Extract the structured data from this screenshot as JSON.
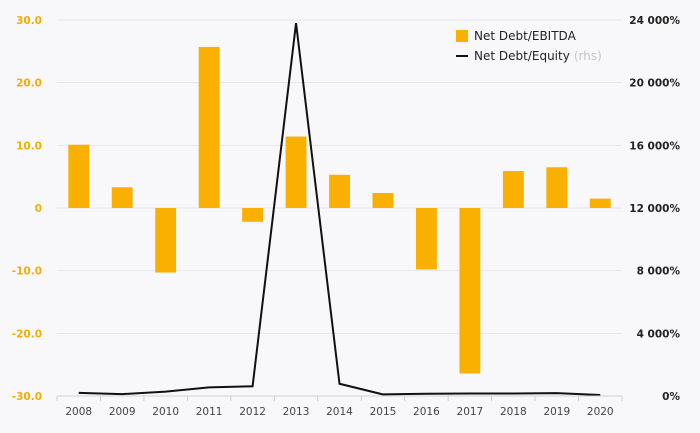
{
  "chart_data": {
    "type": "bar",
    "categories": [
      "2008",
      "2009",
      "2010",
      "2011",
      "2012",
      "2013",
      "2014",
      "2015",
      "2016",
      "2017",
      "2018",
      "2019",
      "2020"
    ],
    "series": [
      {
        "name": "Net Debt/EBITDA",
        "type": "bar",
        "axis": "left",
        "color": "#f9b000",
        "values": [
          10.1,
          3.3,
          -10.3,
          25.7,
          -2.2,
          11.4,
          5.3,
          2.4,
          -9.8,
          -26.4,
          5.9,
          6.5,
          1.5
        ]
      },
      {
        "name": "Net Debt/Equity",
        "type": "line",
        "axis": "right",
        "color": "#111111",
        "values": [
          200,
          120,
          280,
          550,
          620,
          23800,
          780,
          100,
          140,
          160,
          160,
          180,
          60
        ]
      }
    ],
    "legend": {
      "position": "top-right",
      "items": [
        {
          "label": "Net Debt/EBITDA",
          "note": ""
        },
        {
          "label": "Net Debt/Equity",
          "note": "(rhs)"
        }
      ]
    },
    "y_left": {
      "range": [
        -30,
        30
      ],
      "ticks": [
        30,
        20,
        10,
        0,
        -10,
        -20,
        -30
      ],
      "tick_labels": [
        "30.0",
        "20.0",
        "10.0",
        "0",
        "-10.0",
        "-20.0",
        "-30.0"
      ],
      "color": "#f2ae00"
    },
    "y_right": {
      "range": [
        0,
        24000
      ],
      "ticks": [
        24000,
        20000,
        16000,
        12000,
        8000,
        4000,
        0
      ],
      "tick_labels": [
        "24 000%",
        "20 000%",
        "16 000%",
        "12 000%",
        "8 000%",
        "4 000%",
        "0%"
      ],
      "color": "#222222"
    },
    "grid": true,
    "title": "",
    "xlabel": "",
    "ylabel": ""
  }
}
